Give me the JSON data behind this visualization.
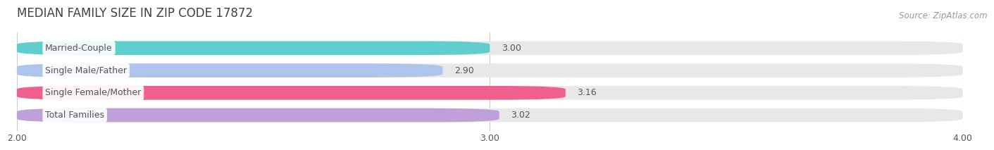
{
  "title": "MEDIAN FAMILY SIZE IN ZIP CODE 17872",
  "source": "Source: ZipAtlas.com",
  "categories": [
    "Married-Couple",
    "Single Male/Father",
    "Single Female/Mother",
    "Total Families"
  ],
  "values": [
    3.0,
    2.9,
    3.16,
    3.02
  ],
  "bar_colors": [
    "#5ecece",
    "#adc4ed",
    "#f0608a",
    "#c0a0d8"
  ],
  "bar_background": "#e8e8e8",
  "xlim": [
    2.0,
    4.0
  ],
  "xticks": [
    2.0,
    3.0,
    4.0
  ],
  "xtick_labels": [
    "2.00",
    "3.00",
    "4.00"
  ],
  "background_color": "#ffffff",
  "title_fontsize": 12,
  "label_fontsize": 9,
  "value_fontsize": 9,
  "source_fontsize": 8.5,
  "bar_height": 0.62,
  "label_color": "#555555",
  "title_color": "#404040",
  "value_color": "#555555",
  "grid_color": "#cccccc",
  "label_box_color": "#ffffff"
}
